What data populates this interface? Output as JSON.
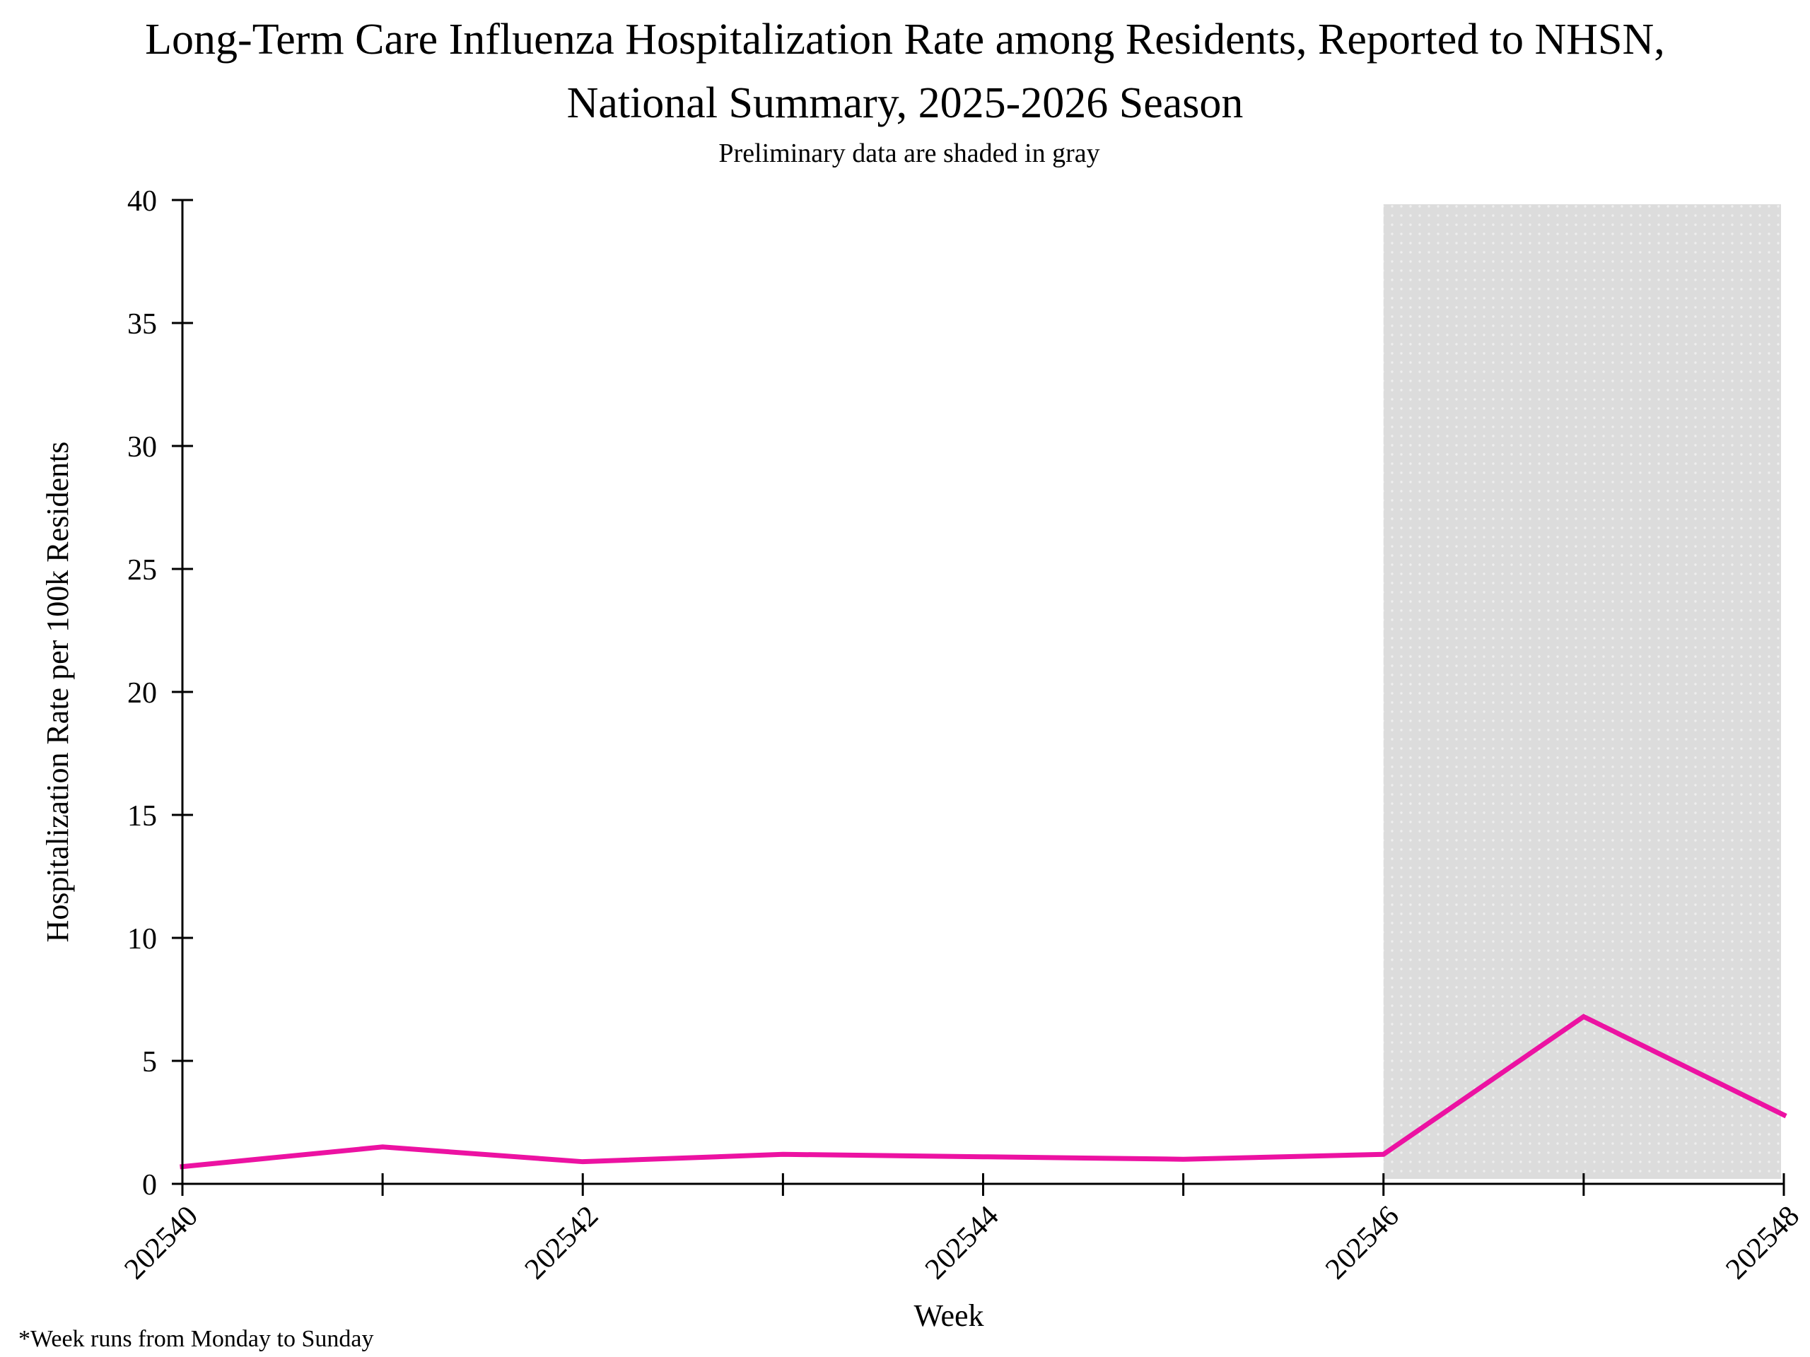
{
  "page": {
    "title_line1": "Long-Term Care Influenza Hospitalization Rate among Residents, Reported to NHSN,",
    "title_line2": "National Summary, 2025-2026 Season",
    "subtitle": "Preliminary data are shaded in gray",
    "footnote": "*Week runs from Monday to Sunday"
  },
  "chart_data": {
    "type": "line",
    "title": "Long-Term Care Influenza Hospitalization Rate among Residents, Reported to NHSN, National Summary, 2025-2026 Season",
    "subtitle": "Preliminary data are shaded in gray",
    "xlabel": "Week",
    "ylabel": "Hospitalization Rate per 100k Residents",
    "x": [
      202540,
      202541,
      202542,
      202543,
      202544,
      202545,
      202546,
      202547,
      202548
    ],
    "values": [
      0.7,
      1.5,
      0.9,
      1.2,
      1.1,
      1.0,
      1.2,
      6.8,
      2.8
    ],
    "x_tick_labels": [
      "202540",
      "202542",
      "202544",
      "202546",
      "202548"
    ],
    "y_ticks": [
      0,
      5,
      10,
      15,
      20,
      25,
      30,
      35,
      40
    ],
    "ylim": [
      0,
      40
    ],
    "xlim": [
      202540,
      202548
    ],
    "grid": false,
    "legend": "none",
    "line_color": "#EC12A2",
    "axis_color": "#000000",
    "preliminary_region": {
      "x_start": 202546,
      "x_end": 202548,
      "fill": "#DCDCDC",
      "note": "Preliminary data are shaded in gray"
    },
    "footnote": "*Week runs from Monday to Sunday"
  }
}
